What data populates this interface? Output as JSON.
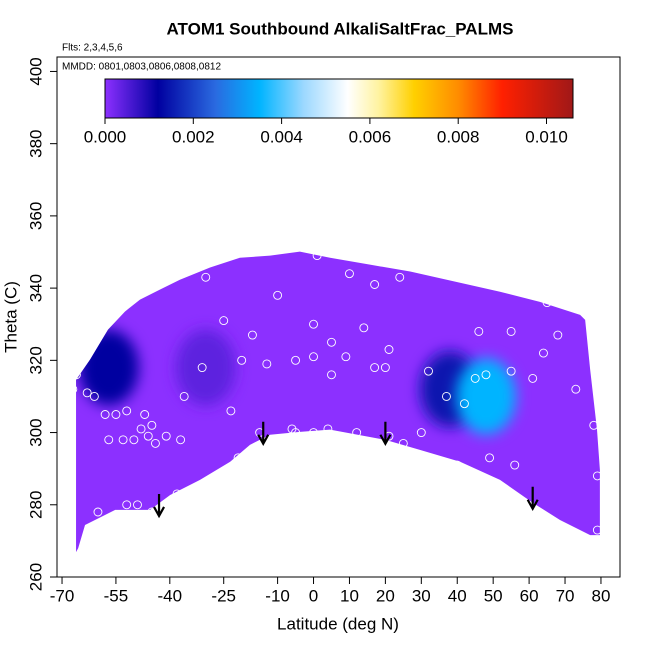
{
  "chart_data": {
    "type": "contour",
    "title": "ATOM1 Southbound AlkaliSaltFrac_PALMS",
    "flights": "Flts: 2,3,4,5,6",
    "dates": "MMDD: 0801,0803,0806,0808,0812",
    "xlabel": "Latitude (deg N)",
    "ylabel": "Theta (C)",
    "xlim": [
      -71.4,
      85.3
    ],
    "ylim": [
      260,
      404
    ],
    "xticks": [
      -70,
      -55,
      -40,
      -25,
      -10,
      0,
      10,
      20,
      30,
      40,
      50,
      60,
      70,
      80
    ],
    "yticks": [
      260,
      280,
      300,
      320,
      340,
      360,
      380,
      400
    ],
    "colorbar": {
      "lim": [
        0,
        0.0106
      ],
      "ticks": [
        {
          "value": 0,
          "label": "0.000"
        },
        {
          "value": 0.002,
          "label": "0.002"
        },
        {
          "value": 0.004,
          "label": "0.004"
        },
        {
          "value": 0.006,
          "label": "0.006"
        },
        {
          "value": 0.008,
          "label": "0.008"
        },
        {
          "value": 0.01,
          "label": "0.010"
        }
      ],
      "stops": [
        [
          0,
          "#8c30ff"
        ],
        [
          0.0012,
          "#0000a0"
        ],
        [
          0.0025,
          "#2a6ae0"
        ],
        [
          0.0035,
          "#00b4ff"
        ],
        [
          0.0045,
          "#9cd8ff"
        ],
        [
          0.0055,
          "#ffffff"
        ],
        [
          0.0062,
          "#fff3a0"
        ],
        [
          0.007,
          "#ffd000"
        ],
        [
          0.008,
          "#ff8c00"
        ],
        [
          0.009,
          "#ff2000"
        ],
        [
          0.0106,
          "#a01818"
        ]
      ]
    },
    "field": {
      "value": 0,
      "x": [
        -66.1,
        -66.1,
        -62.2,
        -57.2,
        -52.5,
        -48.3,
        -42.7,
        -37.2,
        -28.8,
        -20.5,
        -12.1,
        -3.8,
        4.6,
        15.7,
        26.9,
        39.4,
        51.9,
        63.0,
        74.2,
        75.6,
        77.0,
        78.9,
        79.7,
        79.7,
        77.0,
        68.6,
        61.1,
        51.9,
        40.8,
        29.6,
        19.9,
        4.6,
        -3.8,
        -12.1,
        -17.7,
        -23.2,
        -31.6,
        -39.9,
        -45.5,
        -55.2,
        -63.6,
        -65.5
      ],
      "y": [
        266.9,
        314.6,
        320.2,
        328.5,
        333.5,
        336.8,
        339.6,
        342.3,
        345.7,
        348.4,
        349.0,
        350.1,
        348.4,
        346.5,
        344.6,
        341.8,
        339.0,
        336.2,
        332.6,
        331.2,
        317.4,
        300.8,
        289.7,
        271.6,
        271.6,
        275.8,
        280.5,
        286.9,
        291.9,
        295.2,
        298.0,
        300.8,
        300.2,
        299.4,
        296.6,
        291.9,
        286.9,
        282.7,
        278.6,
        278.6,
        274.4,
        268.0
      ]
    },
    "features": [
      {
        "x": -57,
        "y": 318,
        "values": 0.0012
      },
      {
        "x": -30,
        "y": 318,
        "values": 0.0004
      },
      {
        "x": 38,
        "y": 312,
        "values": 0.0015
      },
      {
        "x": 48,
        "y": 310,
        "values": 0.0035
      }
    ],
    "points": {
      "x": [
        -68,
        -67,
        -66,
        -63,
        -61,
        -58,
        -57,
        -55,
        -53,
        -52,
        -50,
        -48,
        -47,
        -46,
        -45,
        -44,
        -41,
        -37,
        -36,
        -31,
        -30,
        -25,
        -20,
        -23,
        -17,
        -13,
        -10,
        -5,
        -5,
        0,
        0,
        0,
        1,
        5,
        5,
        10,
        9,
        12,
        14,
        17,
        17,
        20,
        21,
        24,
        25,
        32,
        30,
        37,
        40,
        42,
        46,
        45,
        48,
        49,
        55,
        55,
        56,
        61,
        64,
        68,
        73,
        78,
        79,
        79,
        -60,
        -52,
        -49,
        -45,
        -38,
        -21,
        -15,
        -6,
        4,
        21,
        65
      ],
      "y": [
        291,
        312,
        316,
        311,
        310,
        305,
        298,
        305,
        298,
        306,
        298,
        301,
        305,
        299,
        302,
        297,
        299,
        298,
        310,
        318,
        343,
        331,
        320,
        306,
        327,
        319,
        338,
        320,
        300,
        330,
        321,
        300,
        349,
        325,
        316,
        344,
        321,
        300,
        329,
        341,
        318,
        318,
        323,
        343,
        297,
        317,
        300,
        310,
        291,
        308,
        328,
        315,
        316,
        293,
        328,
        317,
        291,
        315,
        322,
        327,
        312,
        302,
        288,
        273,
        278,
        280,
        280,
        278,
        283,
        293,
        300,
        301,
        301,
        299,
        336
      ]
    },
    "arrows": {
      "x": [
        -43,
        -14,
        20,
        61
      ],
      "y": [
        283,
        303,
        303,
        285
      ]
    }
  }
}
